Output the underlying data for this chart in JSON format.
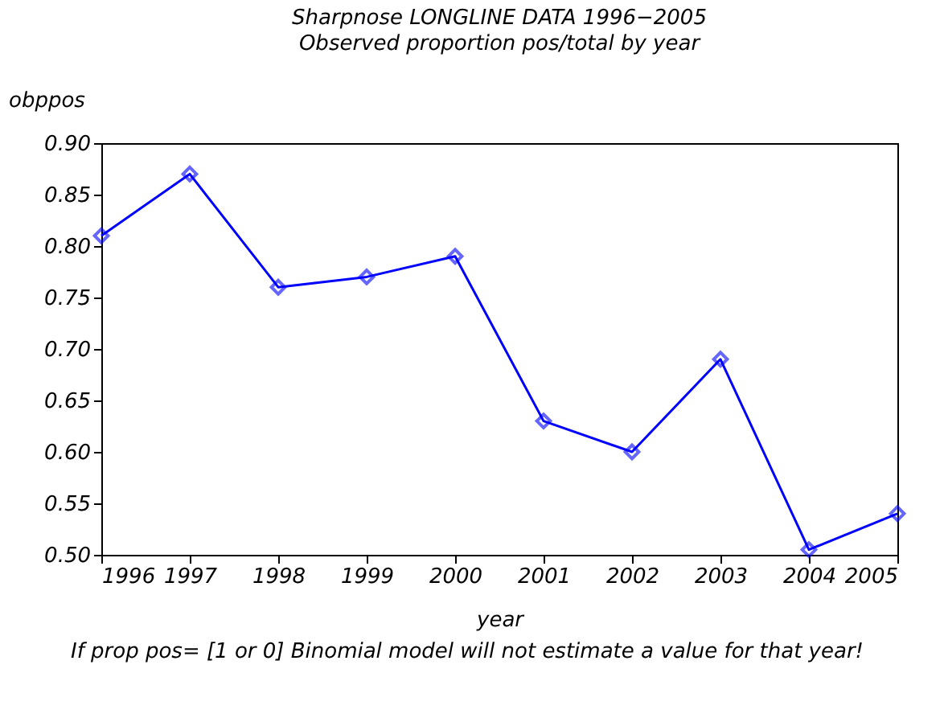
{
  "chart_data": {
    "type": "line",
    "title": "Sharpnose LONGLINE DATA 1996−2005",
    "subtitle": "Observed proportion pos/total by year",
    "xlabel": "year",
    "ylabel": "obppos",
    "x": [
      1996,
      1997,
      1998,
      1999,
      2000,
      2001,
      2002,
      2003,
      2004,
      2005
    ],
    "series": [
      {
        "color": "#0000ff",
        "values": [
          0.81,
          0.87,
          0.76,
          0.77,
          0.79,
          0.63,
          0.6,
          0.69,
          0.505,
          0.54
        ]
      }
    ],
    "xlim": [
      1996,
      2005
    ],
    "xticks": [
      1996,
      1997,
      1998,
      1999,
      2000,
      2001,
      2002,
      2003,
      2004,
      2005
    ],
    "ylim": [
      0.5,
      0.9
    ],
    "yticks": [
      {
        "value": 0.5,
        "label": "0.50"
      },
      {
        "value": 0.55,
        "label": "0.55"
      },
      {
        "value": 0.6,
        "label": "0.60"
      },
      {
        "value": 0.65,
        "label": "0.65"
      },
      {
        "value": 0.7,
        "label": "0.70"
      },
      {
        "value": 0.75,
        "label": "0.75"
      },
      {
        "value": 0.8,
        "label": "0.80"
      },
      {
        "value": 0.85,
        "label": "0.85"
      },
      {
        "value": 0.9,
        "label": "0.90"
      }
    ],
    "marker": "diamond",
    "line_style": "solid",
    "grid": false,
    "annotations": [
      "If prop pos= [1 or 0] Binomial model will not estimate a value for that year!"
    ]
  }
}
